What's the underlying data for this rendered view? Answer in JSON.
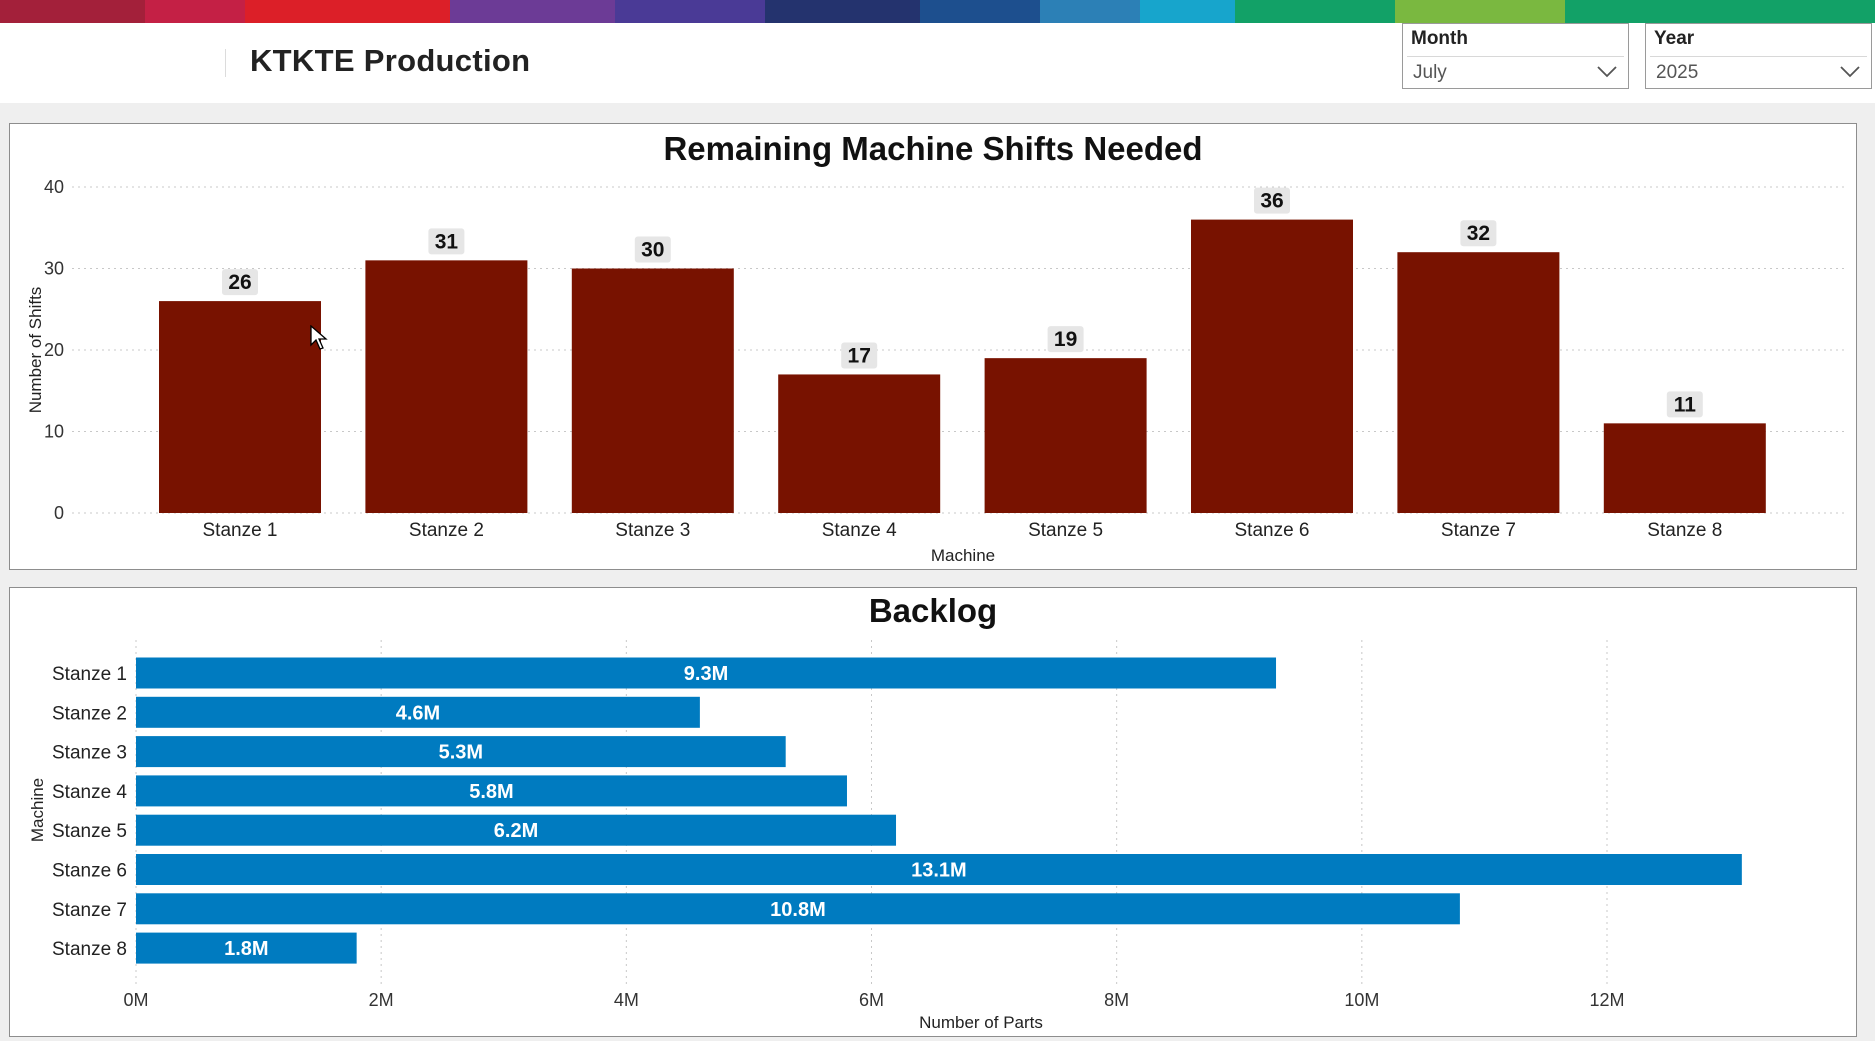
{
  "header": {
    "title": "KTKTE Production",
    "month": {
      "label": "Month",
      "value": "July"
    },
    "year": {
      "label": "Year",
      "value": "2025"
    }
  },
  "colors": {
    "shifts_bar": "#781200",
    "backlog_bar": "#007bc0",
    "label_bg": "#e6e6e6",
    "strip": [
      "#a3203a",
      "#c42045",
      "#dc1f28",
      "#6c3b96",
      "#4a3a96",
      "#24336e",
      "#1d4f8e",
      "#2c80b6",
      "#17a5cc",
      "#12a167",
      "#7ab840",
      "#12a167"
    ]
  },
  "chart_data": [
    {
      "type": "bar",
      "title": "Remaining Machine Shifts Needed",
      "xlabel": "Machine",
      "ylabel": "Number of Shifts",
      "categories": [
        "Stanze 1",
        "Stanze 2",
        "Stanze 3",
        "Stanze 4",
        "Stanze 5",
        "Stanze 6",
        "Stanze 7",
        "Stanze 8"
      ],
      "values": [
        26,
        31,
        30,
        17,
        19,
        36,
        32,
        11
      ],
      "data_labels": [
        "26",
        "31",
        "30",
        "17",
        "19",
        "36",
        "32",
        "11"
      ],
      "yticks": [
        "0",
        "10",
        "20",
        "30",
        "40"
      ],
      "ylim": [
        0,
        40
      ],
      "grid": true
    },
    {
      "type": "bar",
      "orientation": "horizontal",
      "title": "Backlog",
      "xlabel": "Number of Parts",
      "ylabel": "Machine",
      "categories": [
        "Stanze 1",
        "Stanze 2",
        "Stanze 3",
        "Stanze 4",
        "Stanze 5",
        "Stanze 6",
        "Stanze 7",
        "Stanze 8"
      ],
      "values": [
        9300000,
        4600000,
        5300000,
        5800000,
        6200000,
        13100000,
        10800000,
        1800000
      ],
      "data_labels": [
        "9.3M",
        "4.6M",
        "5.3M",
        "5.8M",
        "6.2M",
        "13.1M",
        "10.8M",
        "1.8M"
      ],
      "xticks": [
        "0M",
        "2M",
        "4M",
        "6M",
        "8M",
        "10M",
        "12M"
      ],
      "xlim": [
        0,
        14000000
      ],
      "grid": true
    }
  ]
}
